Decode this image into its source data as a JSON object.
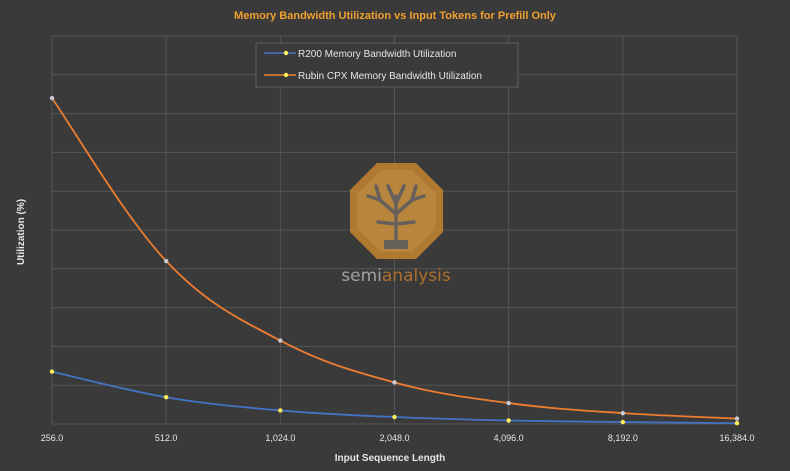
{
  "colors": {
    "background": "#3a3a3a",
    "grid": "#555555",
    "title": "#f0a030",
    "text": "#e6e6e6",
    "series_r200": "#4472c4",
    "series_cpx": "#ed7d31",
    "marker": "#ffee58",
    "watermark": "#c9892e",
    "watermark_text2": "#b46a1e"
  },
  "watermark": {
    "part1": "semi",
    "part2": "analysis",
    "logo": "tree-octagon-logo"
  },
  "chart_data": {
    "type": "line",
    "title": "Memory Bandwidth Utilization vs Input Tokens for Prefill Only",
    "xlabel": "Input Sequence Length",
    "ylabel": "Utilization (%)",
    "x_scale": "log2",
    "categories": [
      "256.0",
      "512.0",
      "1,024.0",
      "2,048.0",
      "4,096.0",
      "8,192.0",
      "16,384.0"
    ],
    "x": [
      256,
      512,
      1024,
      2048,
      4096,
      8192,
      16384
    ],
    "ylim": [
      0,
      100
    ],
    "grid": true,
    "y_tick_labels_shown": false,
    "legend_position": "top-center",
    "series": [
      {
        "name": "R200 Memory Bandwidth Utilization",
        "color": "#4472c4",
        "values": [
          13.5,
          6.9,
          3.5,
          1.8,
          0.9,
          0.5,
          0.2
        ]
      },
      {
        "name": "Rubin CPX Memory Bandwidth Utilization",
        "color": "#ed7d31",
        "values": [
          84,
          42,
          21.5,
          10.7,
          5.4,
          2.8,
          1.4
        ]
      }
    ]
  }
}
